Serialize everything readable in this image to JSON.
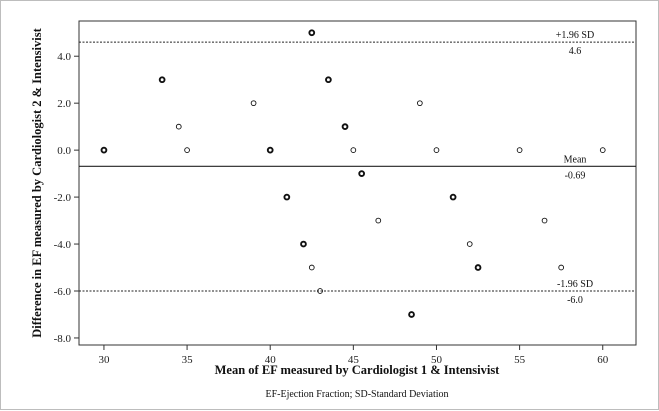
{
  "chart_data": {
    "type": "scatter",
    "xlabel": "Mean of EF measured by Cardiologist 1 & Intensivist",
    "ylabel": "Difference in EF measured by Cardiologist 2 & Intensivist",
    "footnote": "EF-Ejection Fraction; SD-Standard Deviation",
    "xlim": [
      28.5,
      62
    ],
    "ylim": [
      -8.3,
      5.5
    ],
    "x_ticks": [
      30,
      35,
      40,
      45,
      50,
      55,
      60
    ],
    "y_ticks": [
      4.0,
      2.0,
      0.0,
      -2.0,
      -4.0,
      -6.0,
      -8.0
    ],
    "y_tick_labels": [
      "4.0",
      "2.0",
      "0.0",
      "-2.0",
      "-4.0",
      "-6.0",
      "-8.0"
    ],
    "grid": false,
    "points": [
      {
        "x": 30,
        "y": 0,
        "count": 2
      },
      {
        "x": 33.5,
        "y": 3,
        "count": 2
      },
      {
        "x": 34.5,
        "y": 1,
        "count": 1
      },
      {
        "x": 35,
        "y": 0,
        "count": 1
      },
      {
        "x": 39,
        "y": 2,
        "count": 1
      },
      {
        "x": 40,
        "y": 0,
        "count": 2
      },
      {
        "x": 41,
        "y": -2,
        "count": 2
      },
      {
        "x": 42,
        "y": -4,
        "count": 2
      },
      {
        "x": 42.5,
        "y": 5,
        "count": 2
      },
      {
        "x": 42.5,
        "y": -5,
        "count": 1
      },
      {
        "x": 43,
        "y": -6,
        "count": 1
      },
      {
        "x": 43.5,
        "y": 3,
        "count": 2
      },
      {
        "x": 44.5,
        "y": 1,
        "count": 2
      },
      {
        "x": 45,
        "y": 0,
        "count": 1
      },
      {
        "x": 45.5,
        "y": -1,
        "count": 2
      },
      {
        "x": 46.5,
        "y": -3,
        "count": 1
      },
      {
        "x": 48.5,
        "y": -7,
        "count": 2
      },
      {
        "x": 49,
        "y": 2,
        "count": 1
      },
      {
        "x": 50,
        "y": 0,
        "count": 1
      },
      {
        "x": 51,
        "y": -2,
        "count": 2
      },
      {
        "x": 52,
        "y": -4,
        "count": 1
      },
      {
        "x": 52.5,
        "y": -5,
        "count": 2
      },
      {
        "x": 55,
        "y": 0,
        "count": 1
      },
      {
        "x": 56.5,
        "y": -3,
        "count": 1
      },
      {
        "x": 57.5,
        "y": -5,
        "count": 1
      },
      {
        "x": 60,
        "y": 0,
        "count": 1
      }
    ],
    "reference_lines": [
      {
        "label": "+1.96 SD",
        "value_label": "4.6",
        "y": 4.6,
        "style": "dashed"
      },
      {
        "label": "Mean",
        "value_label": "-0.69",
        "y": -0.69,
        "style": "solid"
      },
      {
        "label": "-1.96 SD",
        "value_label": "-6.0",
        "y": -6.0,
        "style": "dashed"
      }
    ]
  }
}
